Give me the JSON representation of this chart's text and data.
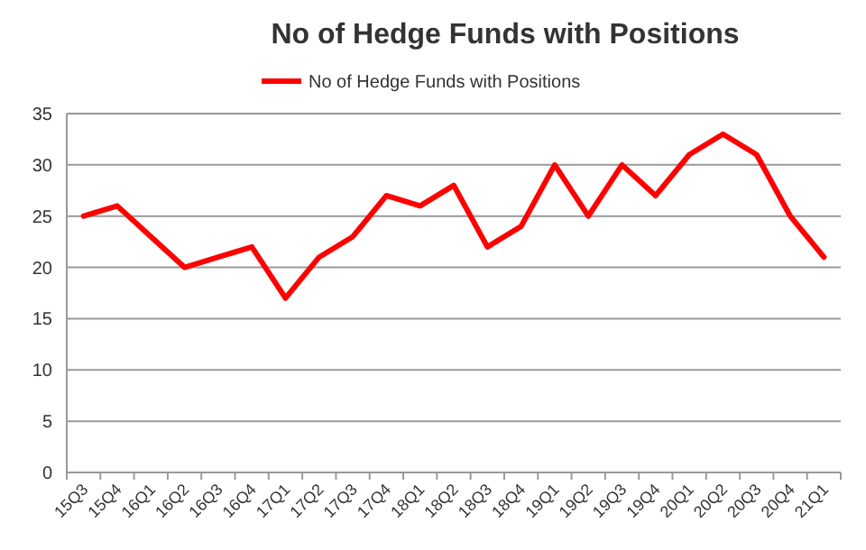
{
  "chart_data": {
    "type": "line",
    "title": "No of Hedge Funds with Positions",
    "categories": [
      "15Q3",
      "15Q4",
      "16Q1",
      "16Q2",
      "16Q3",
      "16Q4",
      "17Q1",
      "17Q2",
      "17Q3",
      "17Q4",
      "18Q1",
      "18Q2",
      "18Q3",
      "18Q4",
      "19Q1",
      "19Q2",
      "19Q3",
      "19Q4",
      "20Q1",
      "20Q2",
      "20Q3",
      "20Q4",
      "21Q1"
    ],
    "series": [
      {
        "name": "No of Hedge Funds with Positions",
        "color": "#ff0000",
        "values": [
          25,
          26,
          23,
          20,
          21,
          22,
          17,
          21,
          23,
          27,
          26,
          28,
          22,
          24,
          30,
          25,
          30,
          27,
          31,
          33,
          31,
          25,
          21
        ]
      }
    ],
    "ylim": [
      0,
      35
    ],
    "yticks": [
      0,
      5,
      10,
      15,
      20,
      25,
      30,
      35
    ],
    "grid": "y",
    "legend": "top",
    "marker": "none",
    "line_style": "solid"
  }
}
